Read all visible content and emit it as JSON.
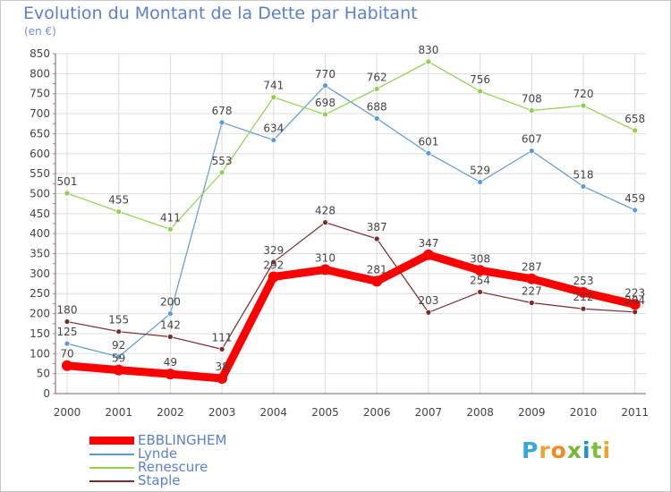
{
  "title": "Evolution du Montant de la Dette par Habitant",
  "subtitle": "(en €)",
  "brand": {
    "letters": [
      "P",
      "r",
      "o",
      "x",
      "i",
      "t",
      "i"
    ],
    "colors": [
      "#3aa7db",
      "#e7a43b",
      "#f08a24",
      "#77b83a",
      "#1f91c8",
      "#7dbf3b",
      "#f0a12a"
    ]
  },
  "chart_data": {
    "type": "line",
    "x": [
      "2000",
      "2001",
      "2002",
      "2003",
      "2004",
      "2005",
      "2006",
      "2007",
      "2008",
      "2009",
      "2010",
      "2011"
    ],
    "ylim": [
      0,
      850
    ],
    "yticks": [
      0,
      50,
      100,
      150,
      200,
      250,
      300,
      350,
      400,
      450,
      500,
      550,
      600,
      650,
      700,
      750,
      800,
      850
    ],
    "grid": true,
    "legend_position": "bottom-left",
    "series": [
      {
        "name": "EBBLINGHEM",
        "color": "#ff0000",
        "width": 9,
        "values": [
          70,
          59,
          49,
          38,
          292,
          310,
          281,
          347,
          308,
          287,
          253,
          223
        ]
      },
      {
        "name": "Lynde",
        "color": "#5b9bd5",
        "width": 1.2,
        "values": [
          125,
          92,
          200,
          678,
          634,
          770,
          688,
          601,
          529,
          607,
          518,
          459
        ]
      },
      {
        "name": "Renescure",
        "color": "#8fd14f",
        "width": 1.2,
        "values": [
          501,
          455,
          411,
          553,
          741,
          698,
          762,
          830,
          756,
          708,
          720,
          658
        ]
      },
      {
        "name": "Staple",
        "color": "#7b2b2b",
        "width": 1.2,
        "values": [
          180,
          155,
          142,
          111,
          329,
          428,
          387,
          203,
          254,
          227,
          212,
          204
        ]
      }
    ]
  }
}
